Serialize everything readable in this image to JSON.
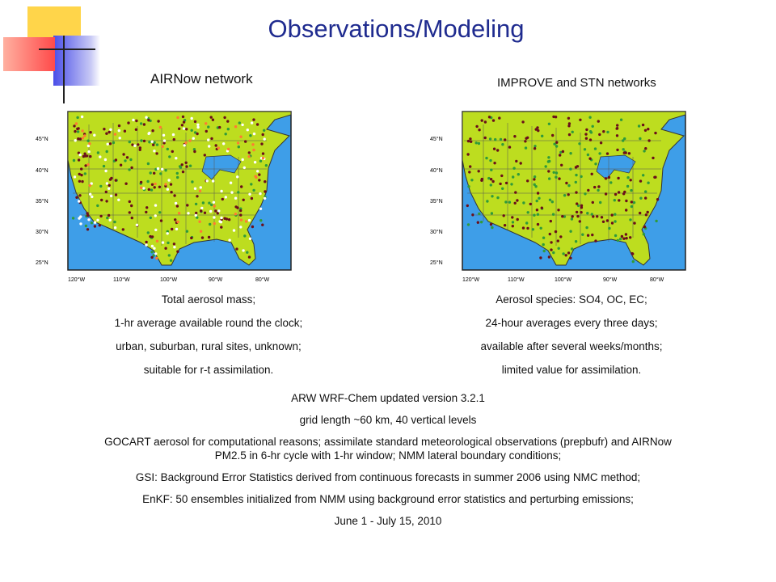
{
  "slide": {
    "title": "Observations/Modeling"
  },
  "left_panel": {
    "network_label": "AIRNow network",
    "captions": [
      "Total aerosol mass;",
      "1-hr average available round the clock;",
      "urban, suburban, rural sites, unknown;",
      "suitable for r-t  assimilation."
    ]
  },
  "right_panel": {
    "network_label": "IMPROVE and STN networks",
    "captions": [
      "Aerosol species: SO4, OC, EC;",
      "24-hour averages every three days;",
      "available after several weeks/months;",
      "limited value for assimilation."
    ]
  },
  "map_axes": {
    "lat_labels": [
      "45°N",
      "40°N",
      "35°N",
      "30°N",
      "25°N"
    ],
    "lon_labels": [
      "120°W",
      "110°W",
      "100°W",
      "90°W",
      "80°W"
    ]
  },
  "model_setup": [
    "ARW WRF-Chem updated version 3.2.1",
    "grid length ~60 km, 40 vertical levels",
    "GOCART aerosol for computational reasons; assimilate standard meteorological observations (prepbufr) and AIRNow PM2.5 in 6-hr cycle with 1-hr window; NMM lateral boundary conditions;",
    "GSI:  Background Error Statistics derived from continuous forecasts in summer 2006 using NMC method;",
    "EnKF: 50 ensembles initialized from NMM using background error statistics and perturbing emissions;",
    "June 1 -  July 15, 2010"
  ],
  "colors": {
    "title": "#1f2b8f",
    "ocean": "#3e9ee8",
    "land": "#bddd1f",
    "site_dark": "#6b0f1a",
    "site_green": "#2f9b3a",
    "site_white": "#ffffff",
    "site_orange": "#ff7a33"
  }
}
